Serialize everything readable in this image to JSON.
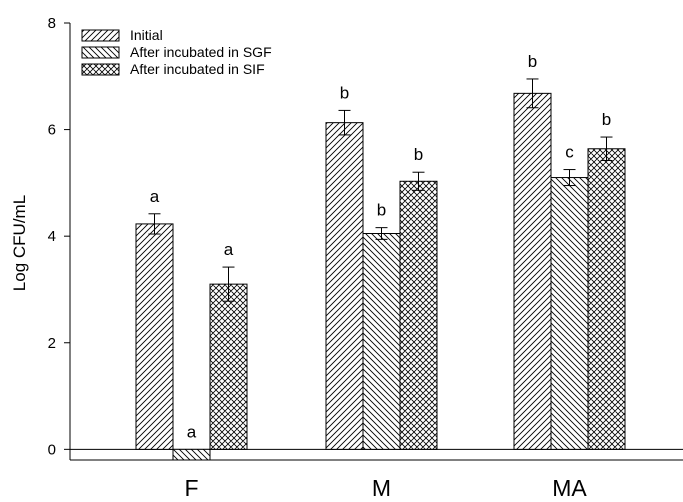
{
  "chart_data": {
    "type": "bar",
    "title": "",
    "xlabel": "",
    "ylabel": "Log CFU/mL",
    "categories": [
      "F",
      "M",
      "MA"
    ],
    "ylim": [
      -0.2,
      8
    ],
    "yticks": [
      0,
      2,
      4,
      6,
      8
    ],
    "grid": false,
    "legend_position": "top-left",
    "series": [
      {
        "name": "Initial",
        "pattern": "forward-diagonal",
        "values": [
          4.23,
          6.13,
          6.68
        ],
        "errors": [
          0.19,
          0.23,
          0.27
        ],
        "labels": [
          "a",
          "b",
          "b"
        ]
      },
      {
        "name": "After incubated in SGF",
        "pattern": "back-diagonal",
        "values": [
          -0.2,
          4.05,
          5.1
        ],
        "errors": [
          0,
          0.11,
          0.15
        ],
        "labels": [
          "a",
          "b",
          "c"
        ]
      },
      {
        "name": "After incubated in SIF",
        "pattern": "crosshatch",
        "values": [
          3.1,
          5.03,
          5.64
        ],
        "errors": [
          0.32,
          0.17,
          0.22
        ],
        "labels": [
          "a",
          "b",
          "b"
        ]
      }
    ]
  }
}
